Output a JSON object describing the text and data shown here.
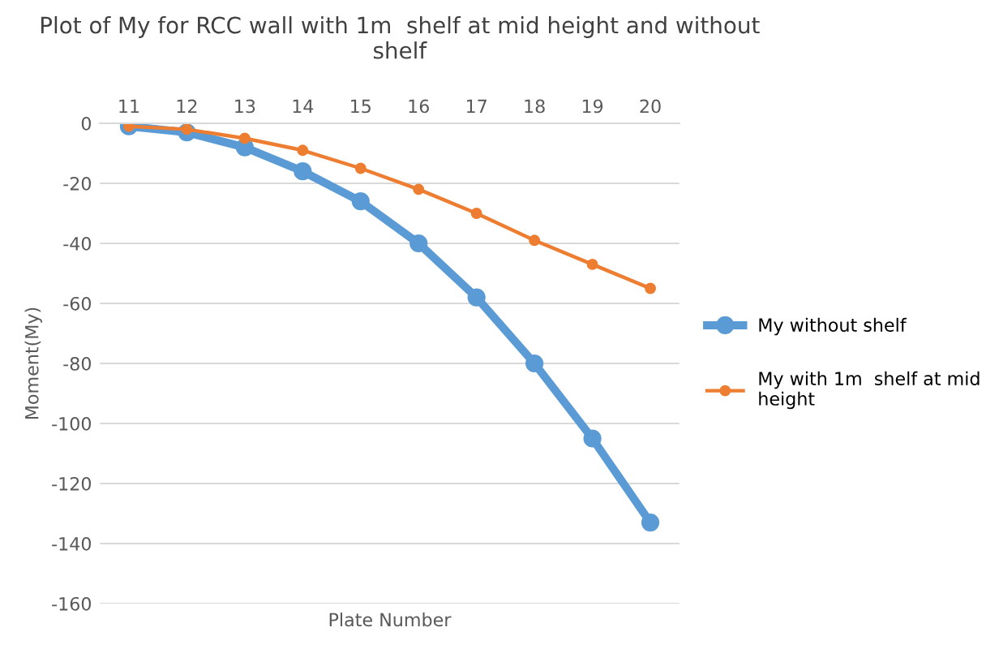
{
  "chart_data": {
    "type": "line",
    "title": "Plot of My for RCC wall with 1m  shelf at mid height and without\nshelf",
    "xlabel": "Plate Number",
    "ylabel": "Moment(My)",
    "categories": [
      "11",
      "12",
      "13",
      "14",
      "15",
      "16",
      "17",
      "18",
      "19",
      "20"
    ],
    "series": [
      {
        "name": "My without shelf",
        "color": "#5b9bd5",
        "values": [
          -1,
          -3,
          -8,
          -16,
          -26,
          -40,
          -58,
          -80,
          -105,
          -133
        ]
      },
      {
        "name": "My with 1m  shelf at mid\nheight",
        "color": "#ed7d31",
        "values": [
          -1,
          -2,
          -5,
          -9,
          -15,
          -22,
          -30,
          -39,
          -47,
          -55
        ]
      }
    ],
    "ylim": [
      -160,
      0
    ],
    "yticks": [
      -160,
      -140,
      -120,
      -100,
      -80,
      -60,
      -40,
      -20,
      0
    ],
    "grid": "y",
    "legend": "right",
    "marker": "circle",
    "line_style": "solid"
  }
}
